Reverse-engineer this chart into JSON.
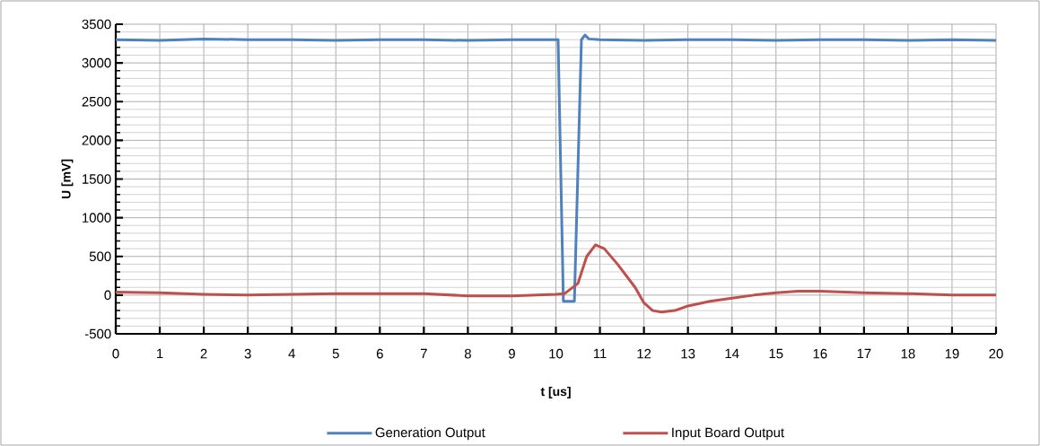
{
  "chart_data": {
    "type": "line",
    "xlabel": "t [us]",
    "ylabel": "U [mV]",
    "xlim": [
      0,
      20
    ],
    "xticks": [
      0,
      1,
      2,
      3,
      4,
      5,
      6,
      7,
      8,
      9,
      10,
      11,
      12,
      13,
      14,
      15,
      16,
      17,
      18,
      19,
      20
    ],
    "ylim": [
      -500,
      3500
    ],
    "yticks": [
      -500,
      0,
      500,
      1000,
      1500,
      2000,
      2500,
      3000,
      3500
    ],
    "grid": true,
    "legend": "bottom",
    "marker": "none",
    "line_style": "solid",
    "series": [
      {
        "name": "Generation Output",
        "color": "#4f81bd",
        "x": [
          0,
          1,
          2,
          3,
          4,
          5,
          6,
          7,
          8,
          9,
          10,
          10.05,
          10.17,
          10.42,
          10.58,
          10.66,
          10.75,
          11,
          12,
          13,
          14,
          15,
          16,
          17,
          18,
          19,
          20
        ],
        "values": [
          3300,
          3290,
          3310,
          3300,
          3300,
          3290,
          3300,
          3300,
          3290,
          3300,
          3300,
          3300,
          -80,
          -80,
          3300,
          3360,
          3310,
          3300,
          3290,
          3300,
          3300,
          3290,
          3300,
          3300,
          3290,
          3300,
          3290
        ]
      },
      {
        "name": "Input Board Output",
        "color": "#c0504d",
        "x": [
          0,
          1,
          2,
          3,
          4,
          5,
          6,
          7,
          8,
          9,
          10,
          10.2,
          10.5,
          10.7,
          10.9,
          11.1,
          11.4,
          11.8,
          12.0,
          12.2,
          12.4,
          12.7,
          13,
          13.5,
          14,
          14.5,
          15,
          15.5,
          16,
          17,
          18,
          19,
          20
        ],
        "values": [
          40,
          30,
          10,
          0,
          10,
          20,
          20,
          20,
          -10,
          -10,
          10,
          20,
          150,
          500,
          650,
          600,
          400,
          100,
          -100,
          -200,
          -220,
          -200,
          -140,
          -80,
          -40,
          0,
          30,
          50,
          50,
          30,
          20,
          0,
          0
        ]
      }
    ]
  }
}
